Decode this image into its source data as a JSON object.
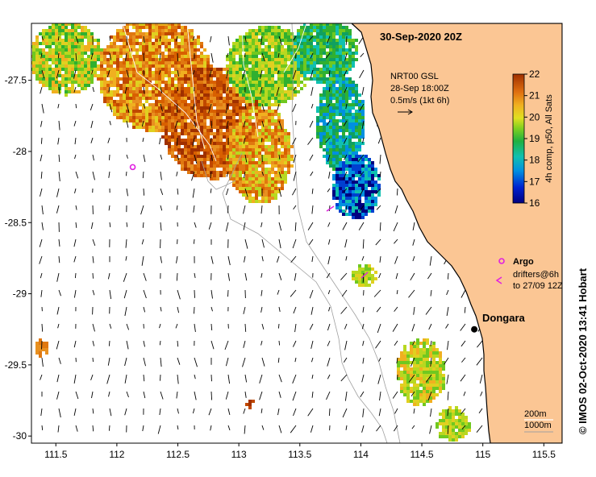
{
  "map": {
    "title": "30-Sep-2020 20Z",
    "x_ticks": [
      "111.5",
      "112",
      "112.5",
      "113",
      "113.5",
      "114",
      "114.5",
      "115",
      "115.5"
    ],
    "y_ticks": [
      "-27.5",
      "-28",
      "-28.5",
      "-29",
      "-29.5",
      "-30"
    ],
    "x_range": [
      111.3,
      115.65
    ],
    "y_range": [
      -30.05,
      -27.1
    ],
    "current_legend": {
      "line1": "NRT00 GSL",
      "line2": "28-Sep 18:00Z",
      "line3": "0.5m/s (1kt 6h)"
    },
    "colorbar": {
      "ticks": [
        "22",
        "21",
        "20",
        "19",
        "18",
        "17",
        "16"
      ],
      "min": 16,
      "max": 22,
      "label": "4h comp, p50, All Sats"
    },
    "argo": {
      "label": "Argo",
      "color": "#e020e0",
      "lon": 112.13,
      "lat": -28.11
    },
    "drifters": {
      "label1": "drifters@6h",
      "label2": "to 27/09 12Z",
      "color": "#e020e0"
    },
    "town": {
      "name": "Dongara",
      "lon": 114.93,
      "lat": -29.25
    },
    "depth_contours": {
      "shallow": "200m",
      "deep": "1000m"
    },
    "credit": "©  IMOS 02-Oct-2020 13:41 Hobart",
    "colors": {
      "land": "#fbc694",
      "coast": "#000000",
      "contour": "#a0a0a0"
    }
  }
}
